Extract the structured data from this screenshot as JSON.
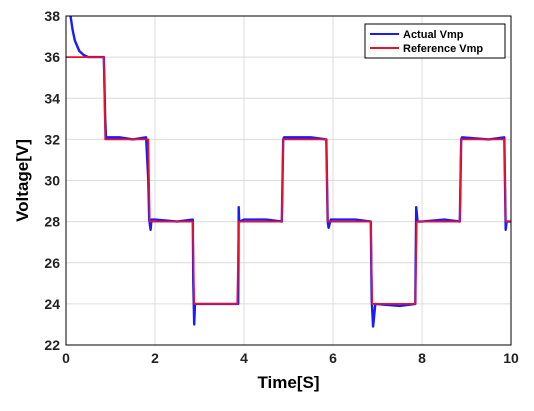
{
  "chart_data": {
    "type": "line",
    "title": "",
    "xlabel": "Time[S]",
    "ylabel": "Voltage[V]",
    "xlim": [
      0,
      10
    ],
    "ylim": [
      22,
      38
    ],
    "xticks": [
      "0",
      "2",
      "4",
      "6",
      "8",
      "10"
    ],
    "yticks": [
      "22",
      "24",
      "26",
      "28",
      "30",
      "32",
      "34",
      "36",
      "38"
    ],
    "grid": true,
    "legend_position": "top-right",
    "series": [
      {
        "name": "Actual Vmp",
        "color": "#1a1aff",
        "x": [
          0.1,
          0.15,
          0.2,
          0.3,
          0.4,
          0.5,
          0.6,
          0.85,
          0.88,
          0.9,
          1.0,
          1.2,
          1.5,
          1.8,
          1.85,
          1.87,
          1.9,
          1.92,
          2.0,
          2.5,
          2.85,
          2.86,
          2.88,
          2.9,
          2.95,
          3.5,
          3.87,
          3.88,
          3.89,
          3.9,
          4.0,
          4.5,
          4.85,
          4.88,
          4.9,
          5.5,
          5.85,
          5.88,
          5.9,
          5.95,
          6.5,
          6.85,
          6.87,
          6.9,
          6.95,
          7.5,
          7.85,
          7.87,
          7.9,
          8.0,
          8.5,
          8.85,
          8.88,
          8.9,
          9.5,
          9.85,
          9.88,
          9.9,
          9.95,
          10.0
        ],
        "y": [
          38.0,
          37.3,
          36.8,
          36.3,
          36.1,
          36.0,
          36.0,
          36.0,
          33.0,
          32.1,
          32.1,
          32.1,
          32.0,
          32.1,
          30.0,
          28.1,
          27.6,
          28.1,
          28.1,
          28.0,
          28.1,
          25.0,
          23.0,
          24.0,
          24.0,
          24.0,
          24.0,
          28.7,
          28.1,
          28.0,
          28.1,
          28.1,
          28.0,
          32.0,
          32.1,
          32.1,
          32.0,
          28.0,
          27.7,
          28.1,
          28.1,
          28.0,
          24.2,
          22.9,
          24.0,
          23.9,
          24.0,
          28.7,
          28.0,
          28.0,
          28.1,
          28.0,
          32.0,
          32.1,
          32.0,
          32.1,
          27.6,
          28.0,
          28.0,
          28.0
        ]
      },
      {
        "name": "Reference Vmp",
        "color": "#e8112d",
        "x": [
          0.0,
          0.85,
          0.88,
          1.85,
          1.88,
          2.85,
          2.88,
          3.85,
          3.88,
          4.85,
          4.88,
          5.85,
          5.88,
          6.85,
          6.88,
          7.85,
          7.88,
          8.85,
          8.88,
          9.85,
          9.88,
          10.0
        ],
        "y": [
          36,
          36,
          32,
          32,
          28,
          28,
          24,
          24,
          28,
          28,
          32,
          32,
          28,
          28,
          24,
          24,
          28,
          28,
          32,
          32,
          28,
          28
        ]
      }
    ]
  }
}
